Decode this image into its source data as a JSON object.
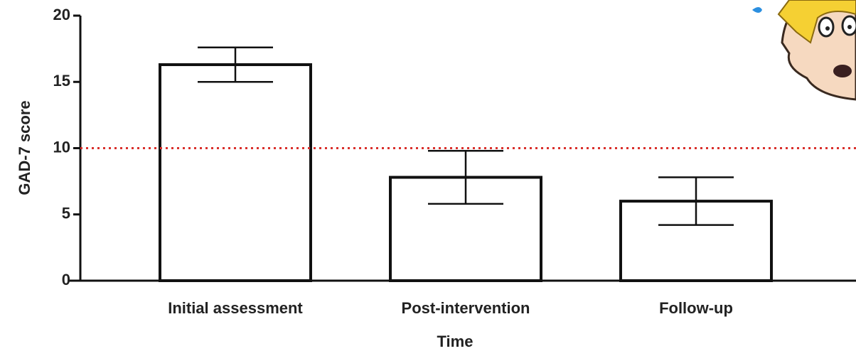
{
  "chart_data": {
    "type": "bar",
    "categories": [
      "Initial assessment",
      "Post-intervention",
      "Follow-up"
    ],
    "values": [
      16.3,
      7.8,
      6.0
    ],
    "errors": [
      1.3,
      2.0,
      1.8
    ],
    "color": "#ffffff",
    "edge_color": "#111111",
    "ylim": [
      0,
      20
    ],
    "yticks": [
      0,
      5,
      10,
      15,
      20
    ],
    "xlabel": "Time",
    "ylabel": "GAD-7 score",
    "reference_line": 10,
    "reference_color": "#d9302c",
    "grid": false
  }
}
